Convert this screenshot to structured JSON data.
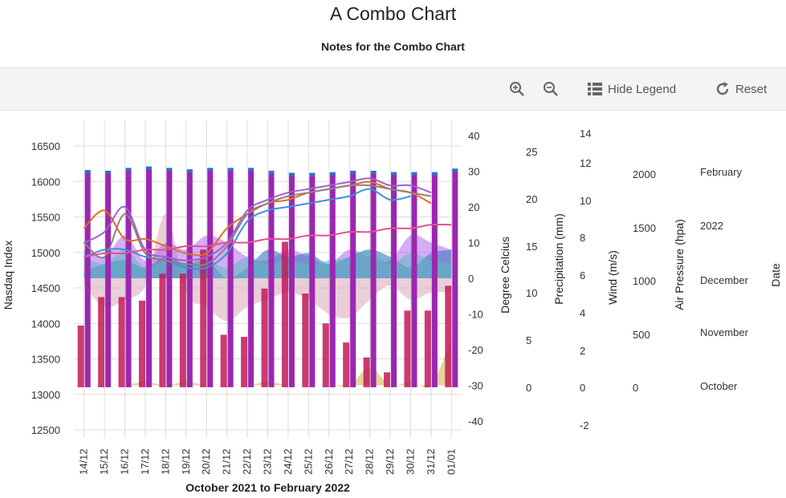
{
  "header": {
    "title": "A Combo Chart",
    "subtitle": "Notes for the Combo Chart"
  },
  "toolbar": {
    "zoom_in_icon": "zoom-in-icon",
    "zoom_out_icon": "zoom-out-icon",
    "hide_legend_label": "Hide Legend",
    "reset_label": "Reset"
  },
  "chart_data": {
    "type": "combo",
    "title": "A Combo Chart",
    "subtitle": "Notes for the Combo Chart",
    "xlabel": "October 2021 to February 2022",
    "categories": [
      "14/12",
      "15/12",
      "16/12",
      "17/12",
      "18/12",
      "19/12",
      "20/12",
      "21/12",
      "22/12",
      "23/12",
      "24/12",
      "25/12",
      "26/12",
      "27/12",
      "28/12",
      "29/12",
      "30/12",
      "31/12",
      "01/01"
    ],
    "axes": {
      "nasdaq": {
        "label": "Nasdaq Index",
        "ticks": [
          12500,
          13000,
          13500,
          14000,
          14500,
          15000,
          15500,
          16000,
          16500
        ],
        "range": [
          12500,
          16650
        ]
      },
      "celsius": {
        "label": "Degree Celcius",
        "ticks": [
          40,
          30,
          20,
          10,
          0,
          -10,
          -20,
          -30,
          -40
        ],
        "range": [
          -40,
          40
        ]
      },
      "precip": {
        "label": "Precipitation (mm)",
        "ticks": [
          25,
          20,
          15,
          10,
          5,
          0
        ]
      },
      "wind": {
        "label": "Wind (m/s)",
        "ticks": [
          14,
          12,
          10,
          8,
          6,
          4,
          2,
          0,
          -2
        ]
      },
      "pressure": {
        "label": "Air Pressure (hpa)",
        "ticks": [
          2000,
          1500,
          1000,
          500,
          0
        ]
      },
      "date": {
        "label": "Date",
        "ticks": [
          "February",
          "2022",
          "December",
          "November",
          "October"
        ]
      }
    },
    "colors": {
      "bar_dark": "#9b27b0",
      "bar_dark_cap": "#2f6fd0",
      "bar_red": "#c2185b",
      "area_purple": "#b06af0",
      "area_teal": "#5fb8c0",
      "area_blue": "#4a7fc0",
      "area_pink": "#d9a6b8",
      "area_gold": "#d4c060",
      "line_orange": "#e07020",
      "line_blue": "#3a90e0",
      "line_purple": "#a060d0",
      "line_grey": "#908080",
      "line_pink": "#e85090"
    },
    "series": [
      {
        "type": "bar",
        "axis": "nasdaq",
        "values": [
          16150,
          16140,
          16180,
          16200,
          16180,
          16160,
          16180,
          16180,
          16180,
          16140,
          16110,
          16110,
          16120,
          16140,
          16140,
          16120,
          16120,
          16120,
          16170
        ]
      },
      {
        "type": "bar",
        "axis": "nasdaq",
        "values": [
          13970,
          14370,
          14370,
          14320,
          14700,
          14700,
          15040,
          13840,
          13810,
          14490,
          15150,
          14420,
          14000,
          13730,
          13520,
          13310,
          14180,
          14180,
          14530
        ]
      },
      {
        "type": "line",
        "axis": "celsius",
        "values": [
          14,
          19,
          11,
          11,
          9,
          7,
          7,
          14,
          18,
          21,
          22,
          24,
          25,
          26,
          27,
          25,
          24,
          21,
          null
        ]
      },
      {
        "type": "line",
        "axis": "celsius",
        "values": [
          6,
          8,
          8,
          6,
          5,
          3,
          3,
          7,
          16,
          19,
          20,
          21,
          22,
          23,
          25,
          22,
          23,
          null,
          null
        ]
      },
      {
        "type": "line",
        "axis": "celsius",
        "values": [
          10,
          13,
          20,
          8,
          6,
          5,
          6,
          10,
          19,
          22,
          24,
          25,
          26,
          27,
          28,
          26,
          26,
          24,
          null
        ]
      },
      {
        "type": "line",
        "axis": "celsius",
        "values": [
          10,
          6,
          18,
          7,
          5,
          4,
          4,
          9,
          18,
          21,
          23,
          24,
          25,
          26,
          26,
          25,
          24,
          23,
          null
        ]
      },
      {
        "type": "line",
        "axis": "celsius",
        "values": [
          6,
          7,
          7,
          8,
          8,
          9,
          9,
          10,
          10,
          11,
          11,
          12,
          12,
          13,
          13,
          14,
          14,
          15,
          15
        ]
      },
      {
        "type": "area",
        "axis": "celsius",
        "values": [
          8,
          6,
          12,
          5,
          10,
          8,
          12,
          10,
          6,
          5,
          8,
          6,
          4,
          8,
          6,
          5,
          12,
          10,
          8
        ]
      },
      {
        "type": "area",
        "axis": "celsius",
        "values": [
          6,
          4,
          8,
          3,
          5,
          4,
          5,
          3,
          6,
          4,
          5,
          4,
          5,
          6,
          8,
          4,
          7,
          5,
          4
        ]
      },
      {
        "type": "area",
        "axis": "celsius",
        "values": [
          2,
          4,
          5,
          3,
          6,
          4,
          5,
          0,
          3,
          8,
          6,
          7,
          4,
          6,
          8,
          6,
          3,
          7,
          8
        ]
      },
      {
        "type": "area",
        "axis": "celsius",
        "values": [
          -2,
          -8,
          -6,
          -2,
          18,
          -4,
          -8,
          -12,
          -8,
          -6,
          -4,
          -6,
          -10,
          -11,
          -6,
          -2,
          -6,
          -4,
          -4
        ]
      },
      {
        "type": "area",
        "axis": "celsius",
        "values": [
          -30,
          -30,
          -30,
          -29,
          -30,
          -29,
          -30,
          -30,
          -30,
          -29,
          -30,
          -30,
          -30,
          -30,
          -25,
          -30,
          -29,
          -30,
          -17
        ]
      }
    ],
    "grid": true,
    "legend": "hidden"
  }
}
